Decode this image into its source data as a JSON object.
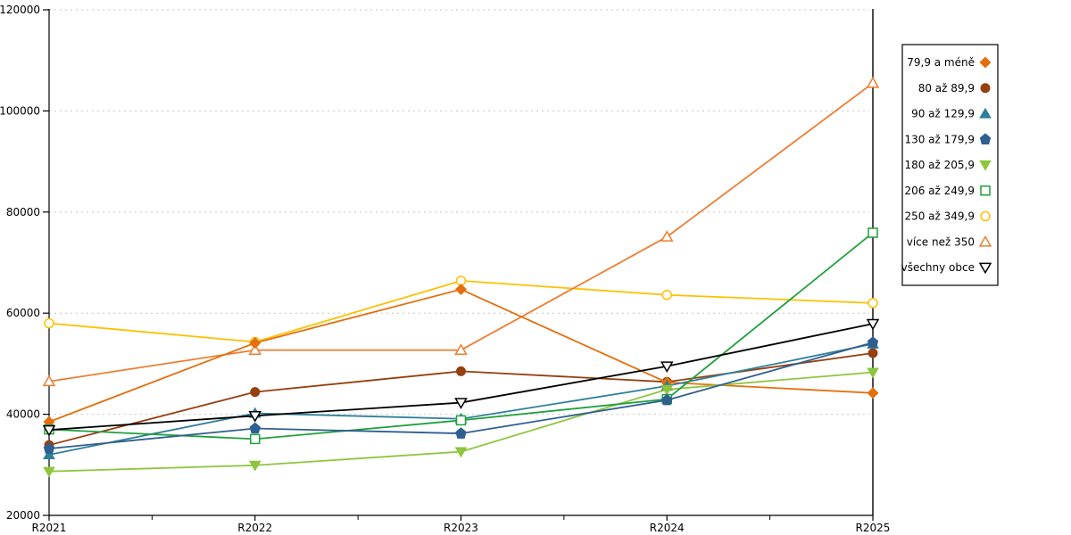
{
  "chart_data": {
    "type": "line",
    "title": "",
    "xlabel": "",
    "ylabel": "",
    "x_categories": [
      "R2021",
      "R2022",
      "R2023",
      "R2024",
      "R2025"
    ],
    "ylim": [
      20000,
      120000
    ],
    "y_ticks": [
      20000,
      40000,
      60000,
      80000,
      100000,
      120000
    ],
    "grid": "horizontal-dashed",
    "grid_color": "#c6c6c6",
    "axis_color": "#000000",
    "legend_position": "right-outside-box",
    "series": [
      {
        "name": "79,9 a méně",
        "marker": "diamond",
        "fill": "solid",
        "color": "#E46F0D",
        "values": [
          38500,
          54100,
          64700,
          46300,
          44200
        ]
      },
      {
        "name": "80 až 89,9",
        "marker": "circle",
        "fill": "solid",
        "color": "#963F0F",
        "values": [
          33900,
          44400,
          48500,
          46400,
          52100
        ]
      },
      {
        "name": "90 až 129,9",
        "marker": "triangle-up",
        "fill": "solid",
        "color": "#2E7F99",
        "values": [
          32000,
          40200,
          39100,
          45600,
          53900
        ]
      },
      {
        "name": "130 až 179,9",
        "marker": "pentagon",
        "fill": "solid",
        "color": "#2F5F8F",
        "values": [
          33200,
          37200,
          36200,
          42800,
          54200
        ]
      },
      {
        "name": "180 až 205,9",
        "marker": "triangle-down",
        "fill": "solid",
        "color": "#8DC63E",
        "values": [
          28700,
          29900,
          32600,
          44900,
          48300
        ]
      },
      {
        "name": "206 až 249,9",
        "marker": "square",
        "fill": "open",
        "color": "#1FA03C",
        "values": [
          37000,
          35100,
          38800,
          43000,
          75900
        ]
      },
      {
        "name": "250 až 349,9",
        "marker": "circle",
        "fill": "open",
        "color": "#FFC000",
        "values": [
          58000,
          54300,
          66400,
          63600,
          62000
        ]
      },
      {
        "name": "více než 350",
        "marker": "triangle-up",
        "fill": "open",
        "color": "#ED7D31",
        "values": [
          46500,
          52700,
          52700,
          75100,
          105500
        ]
      },
      {
        "name": "všechny obce",
        "marker": "triangle-down",
        "fill": "open",
        "color": "#000000",
        "values": [
          36900,
          39700,
          42300,
          49500,
          57900
        ]
      }
    ],
    "paint_order": [
      6,
      7,
      1,
      0,
      2,
      4,
      5,
      3,
      8
    ]
  }
}
